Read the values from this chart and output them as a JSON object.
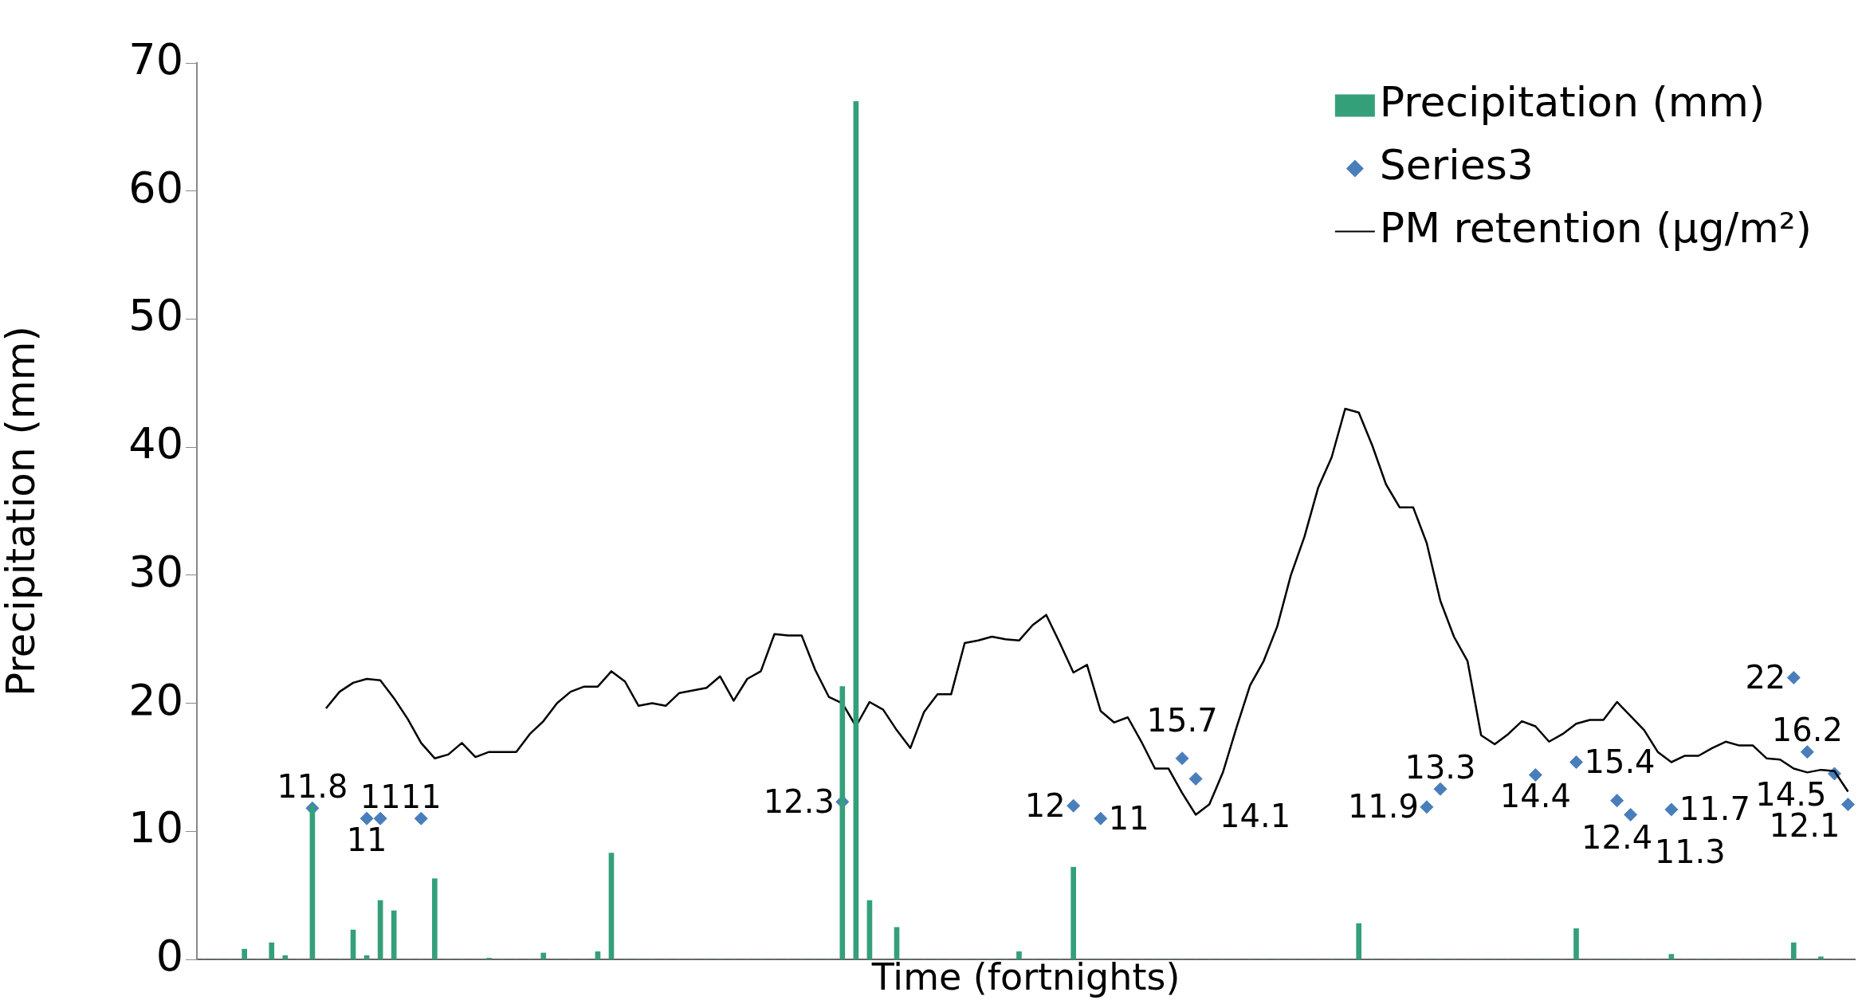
{
  "chart_data": {
    "type": "bar",
    "xlabel": "Time (fortnights)",
    "ylabel": "Precipitation (mm)",
    "categories": [
      null,
      null,
      null,
      null,
      null,
      null,
      null,
      null,
      null,
      null,
      null,
      null,
      null,
      null,
      null,
      null,
      null,
      null,
      null,
      null,
      null,
      null,
      null,
      null,
      null,
      null,
      null,
      null,
      null,
      null,
      null,
      null,
      null,
      null,
      null,
      null,
      null,
      null,
      null,
      null,
      null,
      null,
      null,
      null,
      null,
      null,
      null,
      null,
      null,
      null,
      null,
      null,
      null,
      null,
      null,
      null,
      null,
      null,
      null,
      null,
      null,
      null,
      null,
      null,
      null,
      null,
      null,
      null,
      null,
      null,
      null,
      null,
      null,
      null,
      null,
      null,
      null,
      null,
      null,
      null,
      null,
      null,
      null,
      null,
      null,
      null,
      null,
      null,
      null,
      null,
      null,
      null,
      null,
      null,
      null,
      null,
      null,
      null,
      null,
      null,
      null,
      null,
      null,
      null,
      null,
      null,
      null,
      null,
      null,
      null,
      null,
      null,
      null,
      null,
      null,
      null,
      null,
      null,
      null,
      null,
      null,
      null
    ],
    "series": [
      {
        "name": "Precipitation (mm)",
        "color": "#34a07a",
        "values": [
          0,
          0,
          0,
          0.8,
          0,
          1.3,
          0.3,
          0,
          12,
          0,
          0,
          2.3,
          0.3,
          4.6,
          3.8,
          0,
          0,
          6.3,
          0,
          0,
          0,
          0.1,
          0,
          0,
          0,
          0.5,
          0,
          0,
          0,
          0.6,
          8.3,
          0,
          0,
          0,
          0,
          0,
          0,
          0,
          0,
          0,
          0,
          0,
          0,
          0,
          0,
          0,
          0,
          21.3,
          67,
          4.6,
          0,
          2.5,
          0,
          0,
          0,
          0,
          0,
          0,
          0,
          0,
          0.6,
          0,
          0,
          0,
          7.2,
          0,
          0,
          0,
          0,
          0,
          0,
          0,
          0,
          0,
          0,
          0,
          0,
          0,
          0,
          0,
          0,
          0,
          0,
          0,
          0,
          2.8,
          0,
          0,
          0,
          0,
          0,
          0,
          0,
          0,
          0,
          0,
          0,
          0,
          0,
          0,
          0,
          2.4,
          0,
          0,
          0,
          0,
          0,
          0,
          0.4,
          0,
          0,
          0,
          0,
          0,
          0,
          0,
          0,
          1.3,
          0,
          0.2,
          0,
          0
        ]
      },
      {
        "name": "Series3",
        "type": "scatter",
        "color": "#4a7ebb",
        "marker": "diamond",
        "data_labels": true,
        "values": [
          null,
          null,
          null,
          null,
          null,
          null,
          null,
          null,
          11.8,
          null,
          null,
          null,
          11,
          11,
          null,
          null,
          11,
          null,
          null,
          null,
          null,
          null,
          null,
          null,
          null,
          null,
          null,
          null,
          null,
          null,
          null,
          null,
          null,
          null,
          null,
          null,
          null,
          null,
          null,
          null,
          null,
          null,
          null,
          null,
          null,
          null,
          null,
          12.3,
          null,
          null,
          null,
          null,
          null,
          null,
          null,
          null,
          null,
          null,
          null,
          null,
          null,
          null,
          null,
          null,
          12,
          null,
          11,
          null,
          null,
          null,
          null,
          null,
          15.7,
          14.1,
          null,
          null,
          null,
          null,
          null,
          null,
          null,
          null,
          null,
          null,
          null,
          null,
          null,
          null,
          null,
          null,
          11.9,
          13.3,
          null,
          null,
          null,
          null,
          null,
          null,
          14.4,
          null,
          null,
          15.4,
          null,
          null,
          12.4,
          11.3,
          null,
          null,
          11.7,
          null,
          null,
          null,
          null,
          null,
          null,
          null,
          null,
          22,
          16.2,
          null,
          14.5,
          12.1
        ]
      },
      {
        "name": "PM retention (μg/m²)",
        "type": "line",
        "color": "#000000",
        "values": [
          null,
          null,
          null,
          null,
          null,
          null,
          null,
          null,
          null,
          19.6,
          20.9,
          21.6,
          21.9,
          21.8,
          20.4,
          18.8,
          16.9,
          15.7,
          16.0,
          16.9,
          15.8,
          16.2,
          16.2,
          16.2,
          17.6,
          18.6,
          20.0,
          20.9,
          21.3,
          21.3,
          22.5,
          21.7,
          19.8,
          20.0,
          19.8,
          20.8,
          21.0,
          21.2,
          22.1,
          20.2,
          21.9,
          22.5,
          25.4,
          25.3,
          25.3,
          22.6,
          20.5,
          20.0,
          18.2,
          20.1,
          19.5,
          17.9,
          16.5,
          19.3,
          20.7,
          20.7,
          24.7,
          24.9,
          25.2,
          25.0,
          24.9,
          26.1,
          26.9,
          24.7,
          22.4,
          23.0,
          19.4,
          18.5,
          18.9,
          17.0,
          14.9,
          14.9,
          13.0,
          11.3,
          12.1,
          14.6,
          18.1,
          21.4,
          23.3,
          26.0,
          30.0,
          33.0,
          36.8,
          39.2,
          43.0,
          42.7,
          40.1,
          37.1,
          35.3,
          35.3,
          32.5,
          28.0,
          25.2,
          23.3,
          17.5,
          16.8,
          17.6,
          18.6,
          18.2,
          17.0,
          17.6,
          18.4,
          18.7,
          18.7,
          20.1,
          19.0,
          17.9,
          16.2,
          15.4,
          15.9,
          15.9,
          16.5,
          17.0,
          16.7,
          16.7,
          15.7,
          15.6,
          14.9,
          14.6,
          14.8,
          14.7,
          13.1
        ]
      }
    ],
    "ylim": [
      0,
      70
    ],
    "yticks": [
      0,
      10,
      20,
      30,
      40,
      50,
      60,
      70
    ],
    "grid": false,
    "legend": "top right",
    "tick_labels": "y"
  }
}
